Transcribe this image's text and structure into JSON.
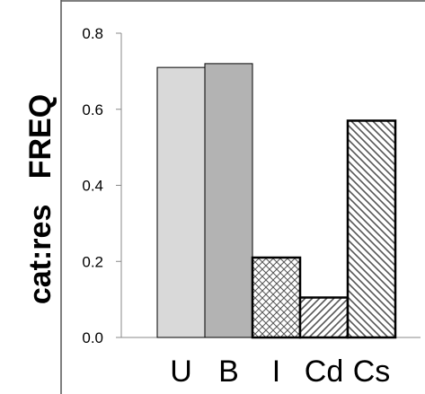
{
  "chart_data": {
    "type": "bar",
    "title": "",
    "ylabel": "cat:res   FREQ",
    "xlabel": "",
    "ylim": [
      0,
      0.8
    ],
    "yticks": [
      0.0,
      0.2,
      0.4,
      0.6,
      0.8
    ],
    "ytick_labels": [
      "0.0",
      "0.2",
      "0.4",
      "0.6",
      "0.8"
    ],
    "categories": [
      "U",
      "B",
      "I",
      "Cd",
      "Cs"
    ],
    "values": [
      0.71,
      0.72,
      0.21,
      0.105,
      0.57
    ],
    "bar_styles": [
      {
        "fill": "#d9d9d9",
        "pattern": "solid"
      },
      {
        "fill": "#b3b3b3",
        "pattern": "solid"
      },
      {
        "fill": "#ffffff",
        "pattern": "crosshatch"
      },
      {
        "fill": "#ffffff",
        "pattern": "diagonal-up"
      },
      {
        "fill": "#ffffff",
        "pattern": "diagonal-down"
      }
    ],
    "grid": false,
    "legend": "none"
  }
}
